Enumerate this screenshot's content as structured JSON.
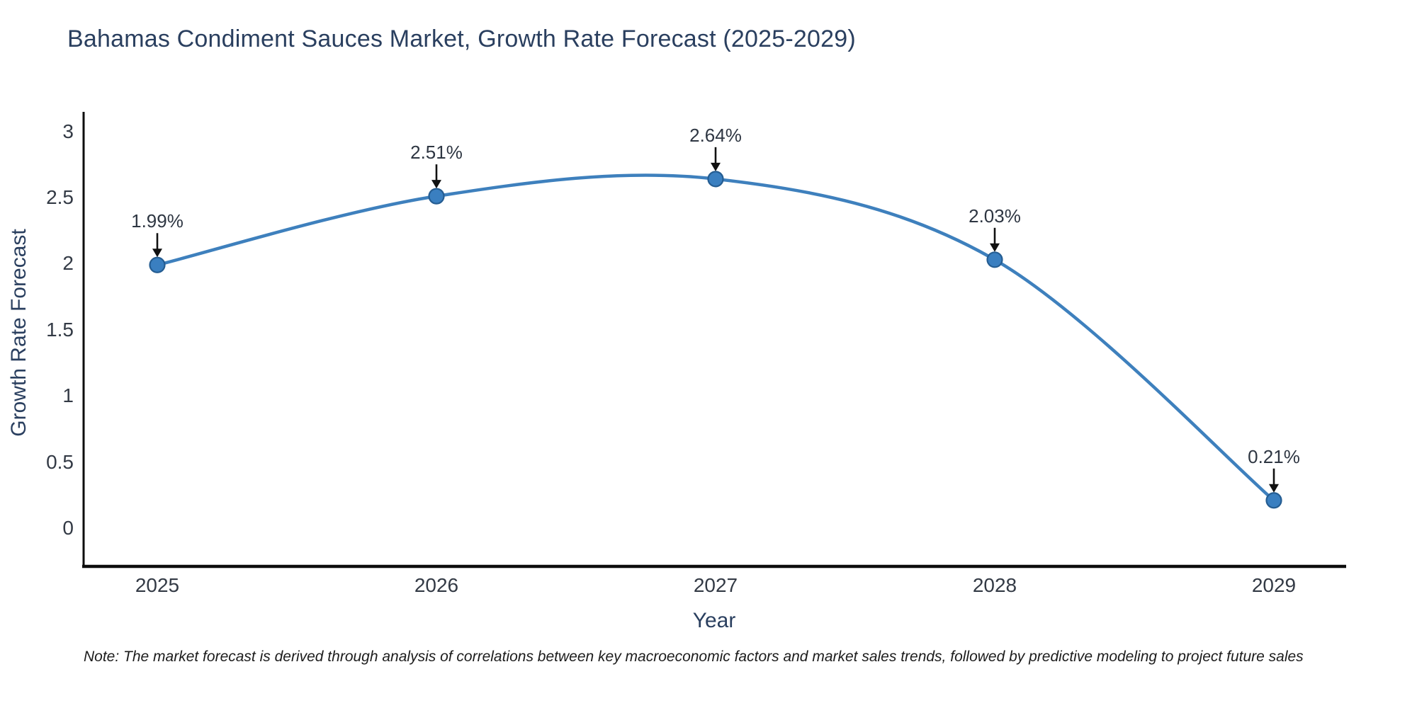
{
  "chart_data": {
    "type": "line",
    "title": "Bahamas Condiment Sauces Market, Growth Rate Forecast (2025-2029)",
    "xlabel": "Year",
    "ylabel": "Growth Rate Forecast",
    "categories": [
      "2025",
      "2026",
      "2027",
      "2028",
      "2029"
    ],
    "series": [
      {
        "name": "Growth Rate Forecast",
        "values": [
          1.99,
          2.51,
          2.64,
          2.03,
          0.21
        ]
      }
    ],
    "point_labels": [
      "1.99%",
      "2.51%",
      "2.64%",
      "2.03%",
      "0.21%"
    ],
    "yticks": [
      3,
      2.5,
      2,
      1.5,
      1,
      0.5,
      0
    ],
    "ylim": [
      -0.3,
      3.14
    ],
    "line_shape": "spline",
    "grid": false,
    "legend": "none",
    "marker": "circle",
    "annotation_arrows": "down",
    "colors": {
      "line": "#3e80bd",
      "marker_fill": "#3a7fc0",
      "marker_edge": "#255d92",
      "arrow": "#111111",
      "spine": "#0d0d0d",
      "title_text": "#2a3f5f",
      "tick_text": "#333a45"
    }
  },
  "note": "Note: The market forecast is derived through analysis of correlations between key macroeconomic factors and market sales trends, followed by predictive modeling to project future sales"
}
